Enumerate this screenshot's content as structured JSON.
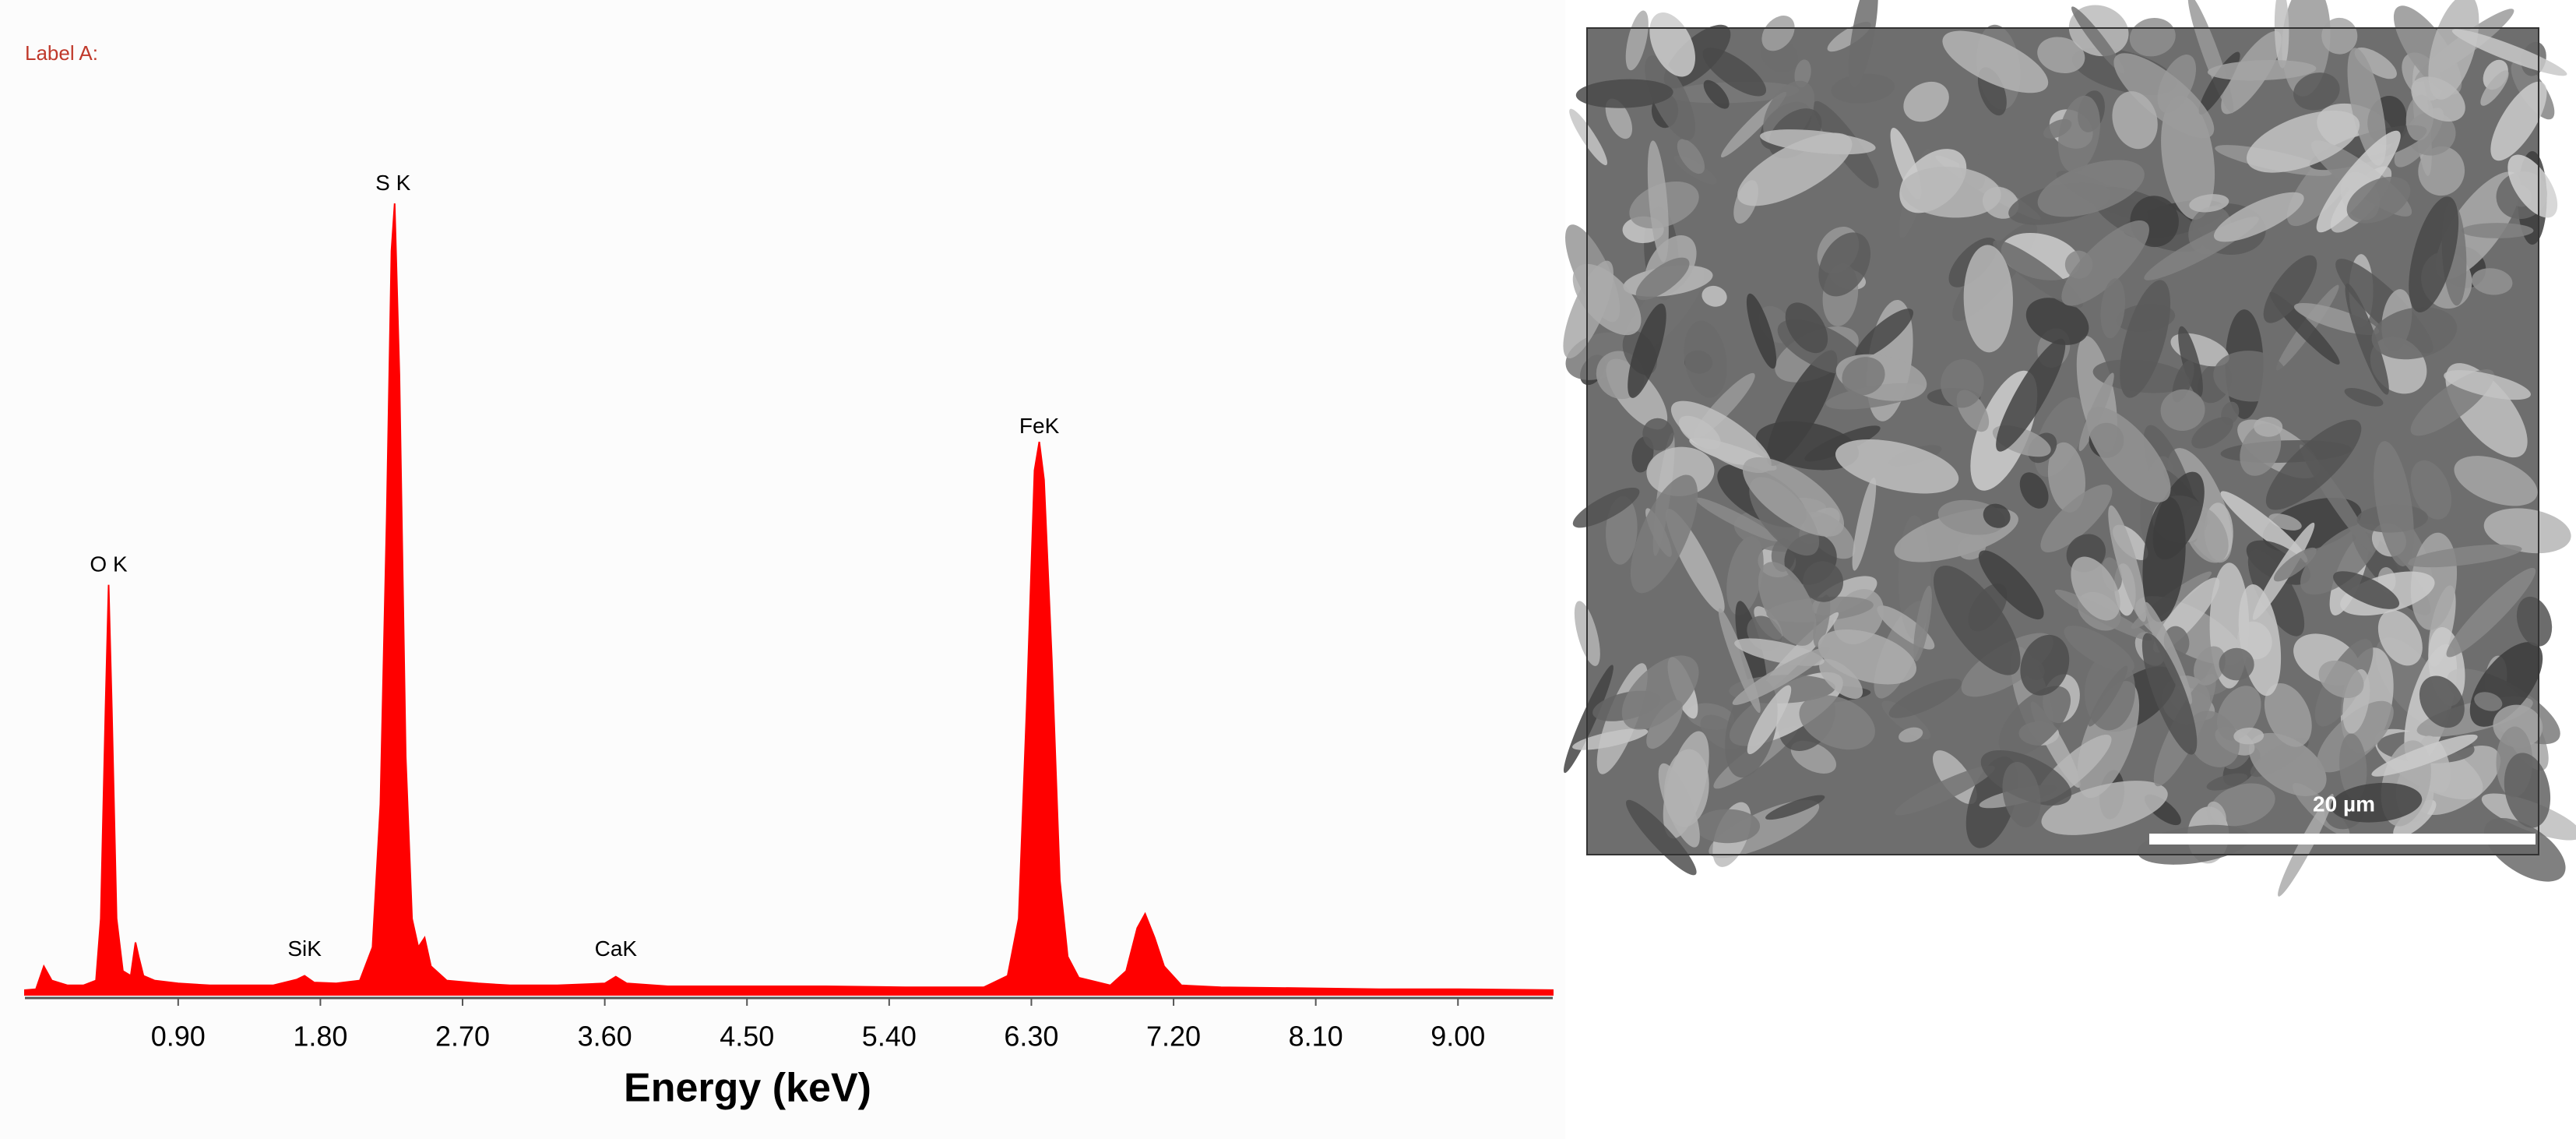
{
  "chart_data": {
    "type": "area",
    "title": "Label A:",
    "x_label": "Energy (keV)",
    "color": "#ff0000",
    "xlim": [
      -0.07,
      9.6
    ],
    "ylim": [
      0,
      100
    ],
    "xticks": [
      {
        "value": 0.9,
        "label": "0.90"
      },
      {
        "value": 1.8,
        "label": "1.80"
      },
      {
        "value": 2.7,
        "label": "2.70"
      },
      {
        "value": 3.6,
        "label": "3.60"
      },
      {
        "value": 4.5,
        "label": "4.50"
      },
      {
        "value": 5.4,
        "label": "5.40"
      },
      {
        "value": 6.3,
        "label": "6.30"
      },
      {
        "value": 7.2,
        "label": "7.20"
      },
      {
        "value": 8.1,
        "label": "8.10"
      },
      {
        "value": 9.0,
        "label": "9.00"
      }
    ],
    "x": [
      -0.07,
      0.0,
      0.05,
      0.1,
      0.2,
      0.3,
      0.38,
      0.41,
      0.44,
      0.46,
      0.48,
      0.51,
      0.55,
      0.6,
      0.63,
      0.65,
      0.68,
      0.75,
      0.9,
      1.1,
      1.3,
      1.5,
      1.65,
      1.7,
      1.76,
      1.9,
      2.05,
      2.13,
      2.18,
      2.22,
      2.25,
      2.27,
      2.3,
      2.34,
      2.38,
      2.42,
      2.46,
      2.5,
      2.6,
      2.8,
      3.0,
      3.3,
      3.6,
      3.67,
      3.74,
      4.0,
      4.5,
      5.0,
      5.5,
      6.0,
      6.15,
      6.22,
      6.27,
      6.32,
      6.35,
      6.38,
      6.43,
      6.48,
      6.53,
      6.6,
      6.8,
      6.9,
      6.97,
      7.02,
      7.08,
      7.14,
      7.25,
      7.5,
      8.0,
      8.5,
      9.0,
      9.6
    ],
    "values": [
      0.5,
      0.6,
      3.0,
      1.5,
      1.0,
      1.0,
      1.5,
      8.0,
      30.0,
      43.0,
      30.0,
      8.0,
      2.5,
      2.0,
      5.5,
      4.0,
      2.0,
      1.5,
      1.2,
      1.0,
      1.0,
      1.0,
      1.6,
      2.0,
      1.3,
      1.2,
      1.5,
      5.0,
      20.0,
      50.0,
      78.0,
      83.0,
      65.0,
      25.0,
      8.0,
      5.0,
      6.0,
      3.0,
      1.5,
      1.2,
      1.0,
      1.0,
      1.2,
      1.9,
      1.2,
      0.9,
      0.9,
      0.9,
      0.8,
      0.8,
      2.0,
      8.0,
      30.0,
      55.0,
      58.0,
      54.0,
      35.0,
      12.0,
      4.0,
      1.8,
      1.0,
      2.5,
      7.0,
      8.5,
      6.0,
      3.0,
      1.0,
      0.8,
      0.7,
      0.6,
      0.6,
      0.5
    ],
    "annotations": [
      {
        "text": "O K",
        "x": 0.46,
        "y": 45
      },
      {
        "text": "SiK",
        "x": 1.7,
        "y": 4.7
      },
      {
        "text": "S K",
        "x": 2.26,
        "y": 85
      },
      {
        "text": "CaK",
        "x": 3.67,
        "y": 4.7
      },
      {
        "text": "FeK",
        "x": 6.35,
        "y": 59.5
      }
    ]
  },
  "image": {
    "scale_bar_label": "20 µm"
  }
}
